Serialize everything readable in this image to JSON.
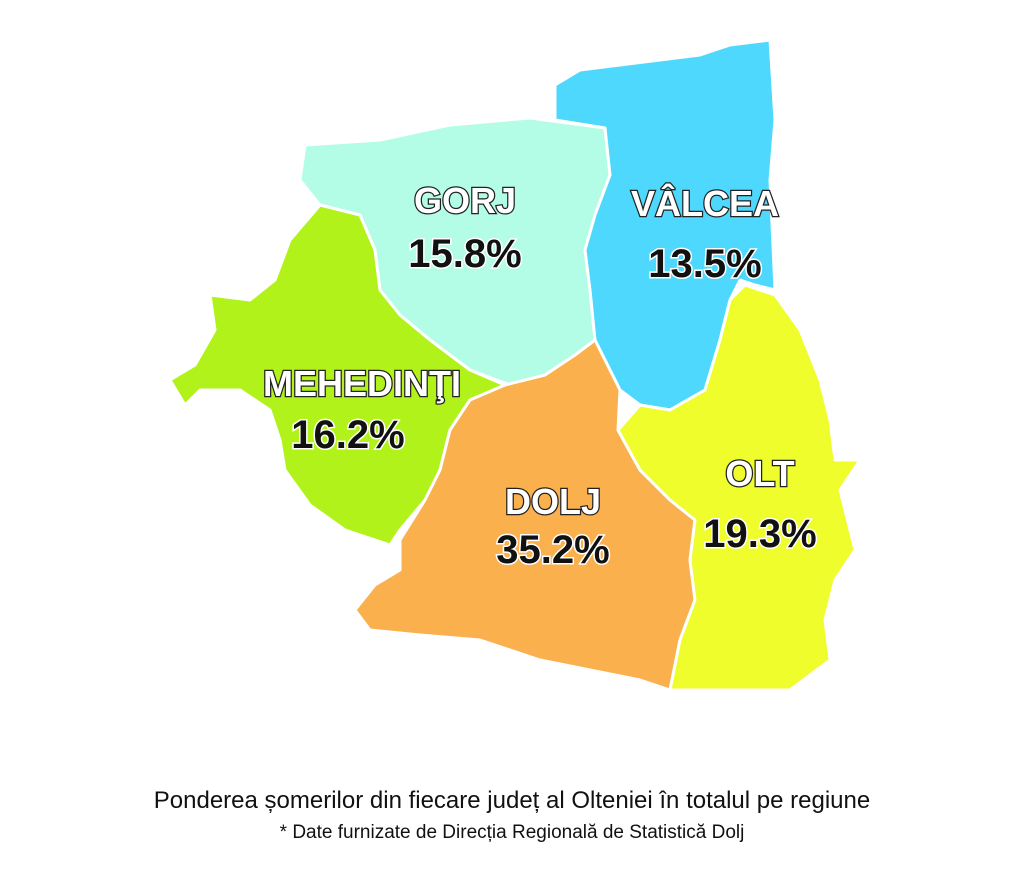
{
  "map": {
    "regions": [
      {
        "name": "GORJ",
        "share": "15.8%",
        "color": "#b3fce6"
      },
      {
        "name": "VÂLCEA",
        "share": "13.5%",
        "color": "#4fd8fd"
      },
      {
        "name": "MEHEDINŢI",
        "share": "16.2%",
        "color": "#b2f21b"
      },
      {
        "name": "DOLJ",
        "share": "35.2%",
        "color": "#fbb04e"
      },
      {
        "name": "OLT",
        "share": "19.3%",
        "color": "#eefd2b"
      }
    ],
    "caption": "Ponderea șomerilor din fiecare județ al Olteniei în totalul pe regiune",
    "source_note": "* Date furnizate de Direcția Regională de Statistică Dolj"
  }
}
